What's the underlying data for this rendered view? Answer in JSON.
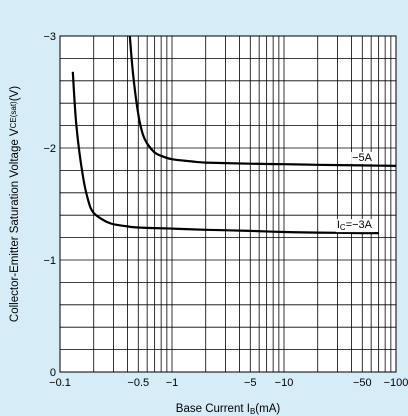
{
  "chart_data": {
    "type": "line",
    "xscale": "log",
    "xlim": [
      0.1,
      100
    ],
    "ylim": [
      0,
      -3
    ],
    "xlabel": "Base Current I",
    "xlabel_sub": "B",
    "xlabel_unit": "(mA)",
    "ylabel": "Collector-Emitter Saturation Voltage V",
    "ylabel_sub": "CE(sat)",
    "ylabel_unit": "(V)",
    "x_ticks": [
      {
        "value": 0.1,
        "label": "−0.1"
      },
      {
        "value": 0.5,
        "label": "−0.5"
      },
      {
        "value": 1,
        "label": "−1"
      },
      {
        "value": 5,
        "label": "−5"
      },
      {
        "value": 10,
        "label": "−10"
      },
      {
        "value": 50,
        "label": "−50"
      },
      {
        "value": 100,
        "label": "−100"
      }
    ],
    "y_ticks": [
      {
        "value": 0,
        "label": "0"
      },
      {
        "value": -1,
        "label": "−1"
      },
      {
        "value": -2,
        "label": "−2"
      },
      {
        "value": -3,
        "label": "−3"
      }
    ],
    "grid": true,
    "series": [
      {
        "name_prefix": "I",
        "name_sub": "C",
        "name_value": "=−3A",
        "x": [
          0.13,
          0.14,
          0.16,
          0.18,
          0.2,
          0.25,
          0.3,
          0.4,
          0.5,
          1,
          2,
          5,
          10,
          20,
          50,
          70
        ],
        "y": [
          -2.68,
          -2.2,
          -1.75,
          -1.52,
          -1.42,
          -1.35,
          -1.32,
          -1.3,
          -1.29,
          -1.28,
          -1.27,
          -1.26,
          -1.25,
          -1.245,
          -1.24,
          -1.24
        ]
      },
      {
        "name_prefix": "",
        "name_sub": "",
        "name_value": "−5A",
        "x": [
          0.42,
          0.45,
          0.5,
          0.55,
          0.6,
          0.7,
          0.8,
          1,
          1.5,
          2,
          5,
          10,
          20,
          50,
          100
        ],
        "y": [
          -3.0,
          -2.65,
          -2.3,
          -2.12,
          -2.04,
          -1.96,
          -1.93,
          -1.9,
          -1.88,
          -1.87,
          -1.86,
          -1.855,
          -1.85,
          -1.845,
          -1.84
        ]
      }
    ]
  }
}
